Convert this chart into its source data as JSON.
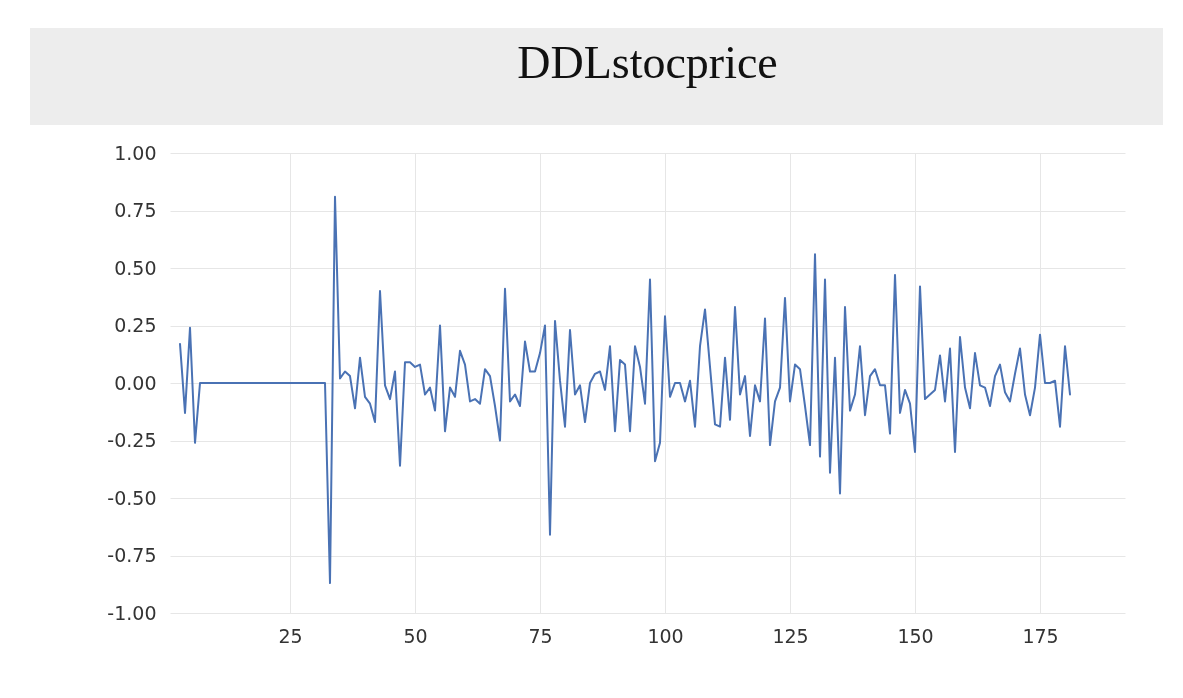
{
  "chart_data": {
    "type": "line",
    "title": "DDLstocprice",
    "x": [
      3,
      4,
      5,
      6,
      7,
      32,
      33,
      34,
      35,
      36,
      37,
      38,
      39,
      40,
      41,
      42,
      43,
      44,
      45,
      46,
      47,
      48,
      49,
      50,
      51,
      52,
      53,
      54,
      55,
      56,
      57,
      58,
      59,
      60,
      61,
      62,
      63,
      64,
      65,
      66,
      67,
      68,
      69,
      70,
      71,
      72,
      73,
      74,
      75,
      76,
      77,
      78,
      79,
      80,
      81,
      82,
      83,
      84,
      85,
      86,
      87,
      88,
      89,
      90,
      91,
      92,
      93,
      94,
      95,
      96,
      97,
      98,
      99,
      100,
      101,
      102,
      103,
      104,
      105,
      106,
      107,
      108,
      109,
      110,
      111,
      112,
      113,
      114,
      115,
      116,
      117,
      118,
      119,
      120,
      121,
      122,
      123,
      124,
      125,
      126,
      127,
      128,
      129,
      130,
      131,
      132,
      133,
      134,
      135,
      136,
      137,
      138,
      139,
      140,
      141,
      142,
      143,
      144,
      145,
      146,
      147,
      148,
      149,
      150,
      151,
      152,
      153,
      154,
      155,
      156,
      157,
      158,
      159,
      160,
      161,
      162,
      163,
      164,
      165,
      166,
      167,
      168,
      169,
      170,
      171,
      172,
      173,
      174,
      175,
      176,
      177,
      178,
      179,
      180,
      181
    ],
    "series": [
      {
        "color": "#4a72b4",
        "values": [
          0.17,
          -0.13,
          0.24,
          -0.26,
          0,
          0,
          -0.87,
          0.81,
          0.02,
          0.05,
          0.03,
          -0.11,
          0.11,
          -0.06,
          -0.09,
          -0.17,
          0.4,
          -0.01,
          -0.07,
          0.05,
          -0.36,
          0.09,
          0.09,
          0.07,
          0.08,
          -0.05,
          -0.02,
          -0.12,
          0.25,
          -0.21,
          -0.02,
          -0.06,
          0.14,
          0.08,
          -0.08,
          -0.07,
          -0.09,
          0.06,
          0.03,
          -0.1,
          -0.25,
          0.41,
          -0.08,
          -0.05,
          -0.1,
          0.18,
          0.05,
          0.05,
          0.13,
          0.25,
          -0.66,
          0.27,
          0.01,
          -0.19,
          0.23,
          -0.05,
          -0.01,
          -0.17,
          0,
          0.04,
          0.05,
          -0.03,
          0.16,
          -0.21,
          0.1,
          0.08,
          -0.21,
          0.16,
          0.07,
          -0.09,
          0.45,
          -0.34,
          -0.26,
          0.29,
          -0.06,
          0,
          0,
          -0.08,
          0.01,
          -0.19,
          0.16,
          0.32,
          0.07,
          -0.18,
          -0.19,
          0.11,
          -0.16,
          0.33,
          -0.05,
          0.03,
          -0.23,
          -0.01,
          -0.08,
          0.28,
          -0.27,
          -0.08,
          -0.02,
          0.37,
          -0.08,
          0.08,
          0.06,
          -0.1,
          -0.27,
          0.56,
          -0.32,
          0.45,
          -0.39,
          0.11,
          -0.48,
          0.33,
          -0.12,
          -0.05,
          0.16,
          -0.14,
          0.03,
          0.06,
          -0.01,
          -0.01,
          -0.22,
          0.47,
          -0.13,
          -0.03,
          -0.09,
          -0.3,
          0.42,
          -0.07,
          -0.05,
          -0.03,
          0.12,
          -0.08,
          0.15,
          -0.3,
          0.2,
          -0.02,
          -0.11,
          0.13,
          -0.01,
          -0.02,
          -0.1,
          0.03,
          0.08,
          -0.04,
          -0.08,
          0.04,
          0.15,
          -0.05,
          -0.14,
          -0.02,
          0.21,
          0,
          0,
          0.01,
          -0.19,
          0.16,
          -0.05
        ]
      }
    ],
    "xlim": [
      1,
      192
    ],
    "xticks": [
      25,
      50,
      75,
      100,
      125,
      150,
      175
    ],
    "ylim": [
      -1,
      1
    ],
    "yticks": [
      {
        "value": -1,
        "label": "-1.00"
      },
      {
        "value": -0.75,
        "label": "-0.75"
      },
      {
        "value": -0.5,
        "label": "-0.50"
      },
      {
        "value": -0.25,
        "label": "-0.25"
      },
      {
        "value": 0,
        "label": "0.00"
      },
      {
        "value": 0.25,
        "label": "0.25"
      },
      {
        "value": 0.5,
        "label": "0.50"
      },
      {
        "value": 0.75,
        "label": "0.75"
      },
      {
        "value": 1,
        "label": "1.00"
      }
    ],
    "grid": true
  }
}
